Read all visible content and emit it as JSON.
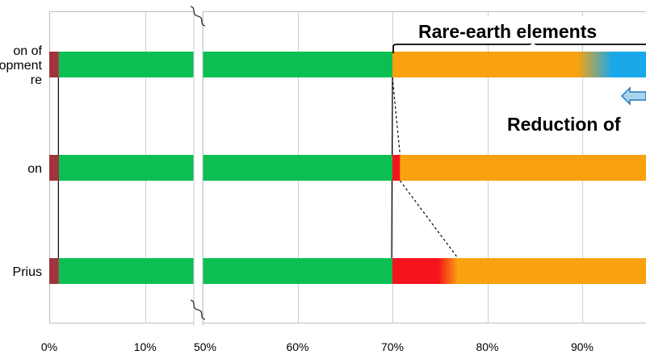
{
  "chart_data": {
    "type": "bar",
    "orientation": "horizontal-stacked",
    "xlim": [
      0,
      100
    ],
    "x_break": [
      50,
      70
    ],
    "x_ticks": [
      "0%",
      "10%",
      "50%",
      "60%",
      "70%",
      "80%",
      "90%"
    ],
    "grid": true,
    "categories": [
      "on of\nopment\nre",
      "on",
      "Prius"
    ],
    "segment_colors": {
      "base": "#a0333b",
      "main": "#0bbf53",
      "ree": "#f9a10e",
      "accent_red": "#f5141c",
      "accent_blue": "#19a9ea"
    },
    "bars": [
      {
        "category": "on of\nopment\nre",
        "segments": [
          {
            "kind": "base",
            "start": 0,
            "end": 1
          },
          {
            "kind": "main",
            "start": 1,
            "end": 70
          },
          {
            "kind": "ree",
            "start": 70,
            "end": 90
          },
          {
            "kind": "accent_blue",
            "start": 90,
            "end": 100
          }
        ]
      },
      {
        "category": "on",
        "segments": [
          {
            "kind": "base",
            "start": 0,
            "end": 1
          },
          {
            "kind": "main",
            "start": 1,
            "end": 70
          },
          {
            "kind": "accent_red",
            "start": 70,
            "end": 70.8
          },
          {
            "kind": "ree",
            "start": 70.8,
            "end": 100
          }
        ]
      },
      {
        "category": "Prius",
        "segments": [
          {
            "kind": "base",
            "start": 0,
            "end": 1
          },
          {
            "kind": "main",
            "start": 1,
            "end": 70
          },
          {
            "kind": "accent_red",
            "start": 70,
            "end": 76.9
          },
          {
            "kind": "ree",
            "start": 76.9,
            "end": 100
          }
        ]
      }
    ],
    "annotations": [
      "Rare-earth elements",
      "Reduction of"
    ]
  }
}
